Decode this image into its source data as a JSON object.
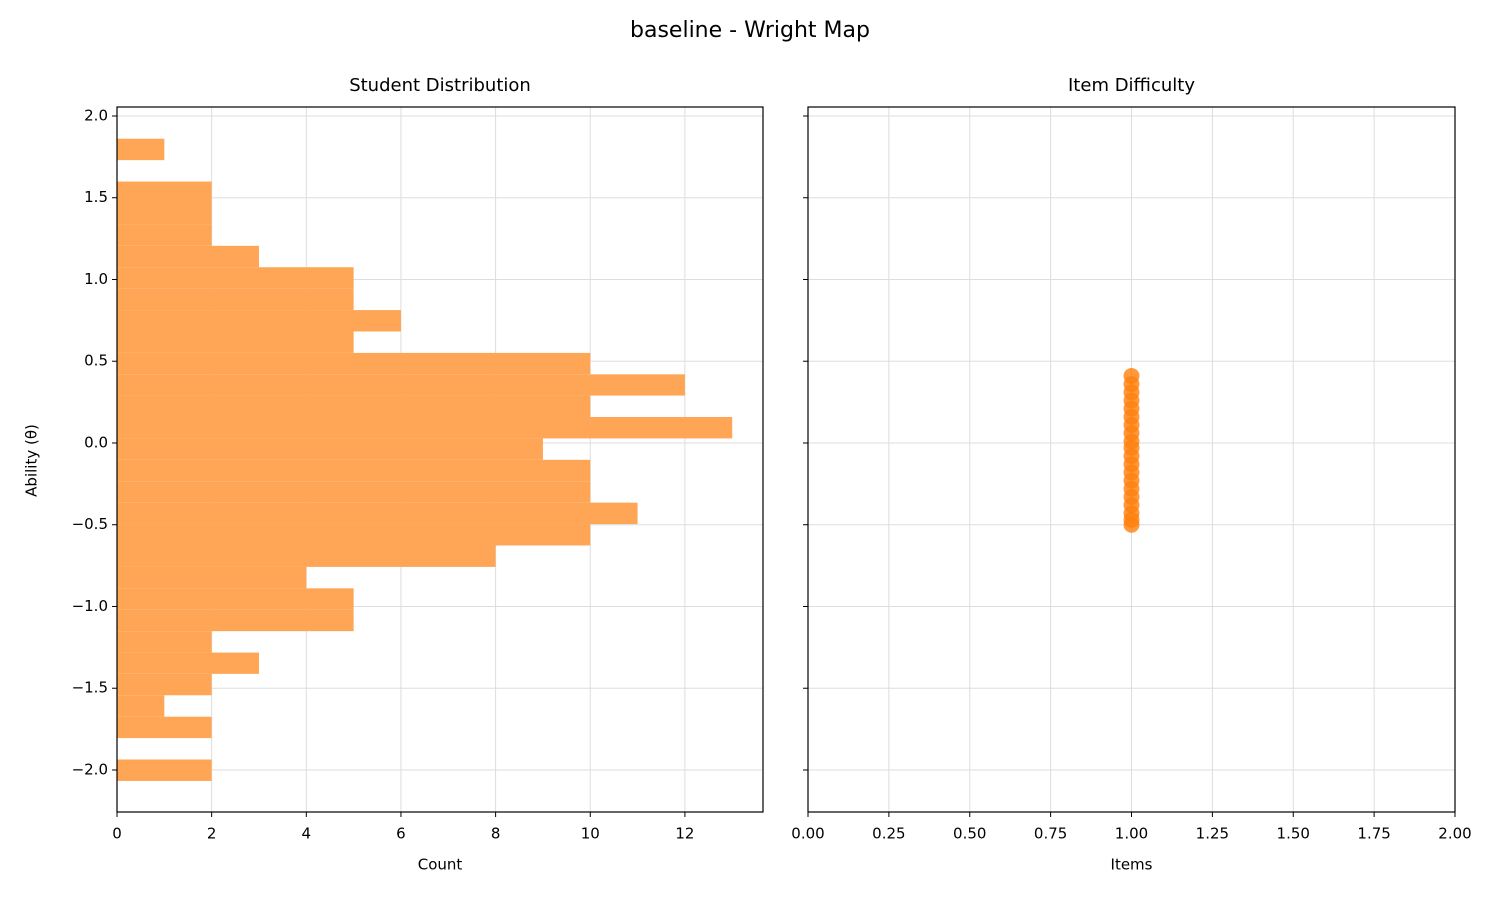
{
  "title": "baseline - Wright Map",
  "chart_data": [
    {
      "type": "histogram",
      "orientation": "horizontal",
      "title": "Student Distribution",
      "xlabel": "Count",
      "ylabel": "Ability (θ)",
      "bins": [
        -2.067,
        -1.936,
        -1.805,
        -1.674,
        -1.543,
        -1.412,
        -1.282,
        -1.151,
        -1.02,
        -0.889,
        -0.758,
        -0.627,
        -0.496,
        -0.365,
        -0.234,
        -0.103,
        0.028,
        0.159,
        0.29,
        0.42,
        0.551,
        0.682,
        0.813,
        0.944,
        1.075,
        1.206,
        1.337,
        1.468,
        1.599,
        1.73,
        1.861
      ],
      "counts": [
        2,
        0,
        2,
        1,
        2,
        3,
        2,
        5,
        5,
        4,
        8,
        10,
        11,
        10,
        10,
        9,
        13,
        10,
        12,
        10,
        5,
        6,
        5,
        5,
        3,
        2,
        2,
        2,
        0,
        1
      ],
      "color": "#fea656",
      "grid": true,
      "xlim": [
        0,
        13.65
      ],
      "xticks": [
        0,
        2,
        4,
        6,
        8,
        10,
        12
      ],
      "ylim": [
        -2.257,
        2.055
      ],
      "yticks": [
        {
          "value": -2,
          "label": "−2.0"
        },
        {
          "value": -1.5,
          "label": "−1.5"
        },
        {
          "value": -1,
          "label": "−1.0"
        },
        {
          "value": -0.5,
          "label": "−0.5"
        },
        {
          "value": 0,
          "label": "0.0"
        },
        {
          "value": 0.5,
          "label": "0.5"
        },
        {
          "value": 1,
          "label": "1.0"
        },
        {
          "value": 1.5,
          "label": "1.5"
        },
        {
          "value": 2,
          "label": "2.0"
        }
      ]
    },
    {
      "type": "scatter",
      "title": "Item Difficulty",
      "xlabel": "Items",
      "x": [
        1,
        1,
        1,
        1,
        1,
        1,
        1,
        1,
        1,
        1,
        1,
        1,
        1,
        1,
        1,
        1,
        1,
        1,
        1,
        1
      ],
      "y": [
        0.41,
        0.36,
        0.31,
        0.26,
        0.21,
        0.16,
        0.11,
        0.06,
        0.01,
        -0.03,
        -0.08,
        -0.13,
        -0.18,
        -0.23,
        -0.28,
        -0.33,
        -0.38,
        -0.43,
        -0.47,
        -0.5
      ],
      "color": "#ff7f0e",
      "grid": true,
      "xlim": [
        0,
        2
      ],
      "xticks": [
        {
          "value": 0,
          "label": "0.00"
        },
        {
          "value": 0.25,
          "label": "0.25"
        },
        {
          "value": 0.5,
          "label": "0.50"
        },
        {
          "value": 0.75,
          "label": "0.75"
        },
        {
          "value": 1,
          "label": "1.00"
        },
        {
          "value": 1.25,
          "label": "1.25"
        },
        {
          "value": 1.5,
          "label": "1.50"
        },
        {
          "value": 1.75,
          "label": "1.75"
        },
        {
          "value": 2,
          "label": "2.00"
        }
      ],
      "ylim": [
        -2.257,
        2.055
      ],
      "yticks": [
        -2,
        -1.5,
        -1,
        -0.5,
        0,
        0.5,
        1,
        1.5,
        2
      ]
    }
  ]
}
